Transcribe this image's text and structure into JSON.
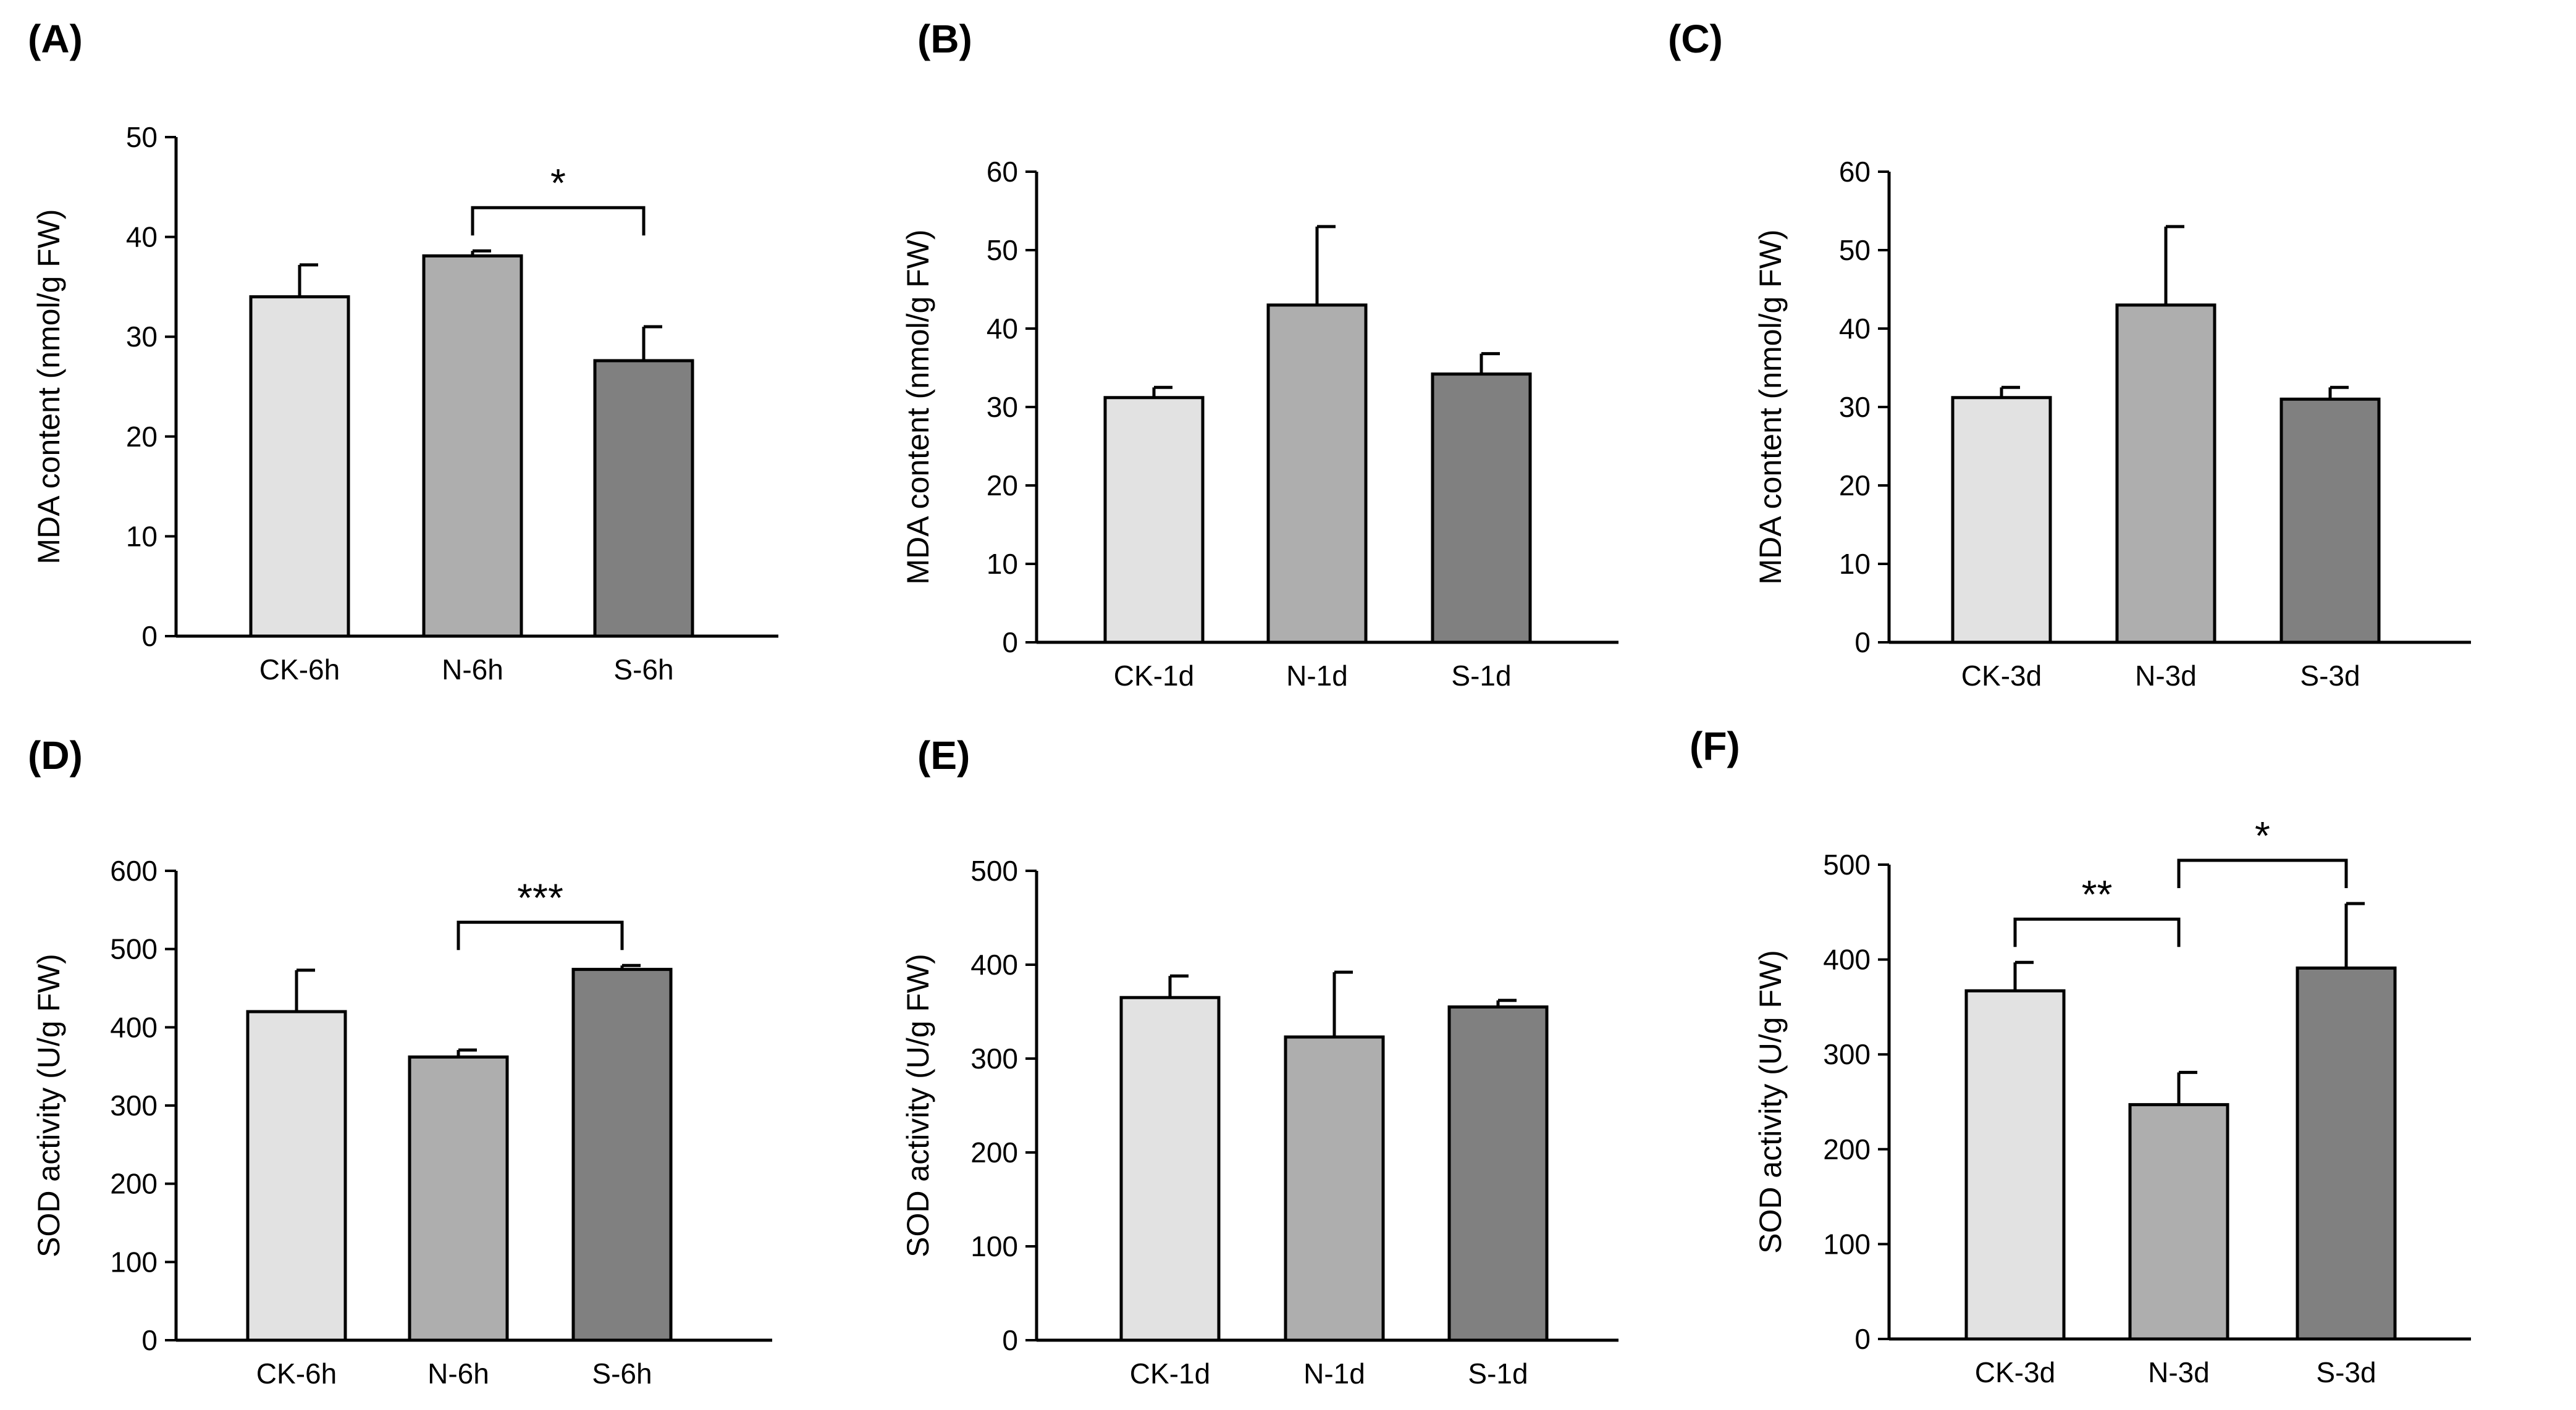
{
  "colors": {
    "bar_light": "#e2e2e2",
    "bar_mid": "#aeaeae",
    "bar_dark": "#808080",
    "stroke": "#000000",
    "background": "#ffffff"
  },
  "chart_data": [
    {
      "panel": "(A)",
      "type": "bar",
      "ylabel": "MDA content (nmol/g FW)",
      "xlabel": "",
      "ylim": [
        0,
        50
      ],
      "yticks": [
        0,
        10,
        20,
        30,
        40,
        50
      ],
      "categories": [
        "CK-6h",
        "N-6h",
        "S-6h"
      ],
      "values": [
        34,
        38.1,
        27.6
      ],
      "errors": [
        3.2,
        0.5,
        3.4
      ],
      "significance": [
        {
          "from": 1,
          "to": 2,
          "label": "*"
        }
      ]
    },
    {
      "panel": "(B)",
      "type": "bar",
      "ylabel": "MDA content (nmol/g FW)",
      "xlabel": "",
      "ylim": [
        0,
        60
      ],
      "yticks": [
        0,
        10,
        20,
        30,
        40,
        50,
        60
      ],
      "categories": [
        "CK-1d",
        "N-1d",
        "S-1d"
      ],
      "values": [
        31.2,
        43,
        34.2
      ],
      "errors": [
        1.3,
        10,
        2.6
      ],
      "significance": []
    },
    {
      "panel": "(C)",
      "type": "bar",
      "ylabel": "MDA content (nmol/g FW)",
      "xlabel": "",
      "ylim": [
        0,
        60
      ],
      "yticks": [
        0,
        10,
        20,
        30,
        40,
        50,
        60
      ],
      "categories": [
        "CK-3d",
        "N-3d",
        "S-3d"
      ],
      "values": [
        31.2,
        43,
        31
      ],
      "errors": [
        1.3,
        10,
        1.5
      ],
      "significance": []
    },
    {
      "panel": "(D)",
      "type": "bar",
      "ylabel": "SOD activity (U/g FW)",
      "xlabel": "",
      "ylim": [
        0,
        600
      ],
      "yticks": [
        0,
        100,
        200,
        300,
        400,
        500,
        600
      ],
      "categories": [
        "CK-6h",
        "N-6h",
        "S-6h"
      ],
      "values": [
        420,
        362,
        474
      ],
      "errors": [
        53,
        9,
        5
      ],
      "significance": [
        {
          "from": 1,
          "to": 2,
          "label": "***"
        }
      ]
    },
    {
      "panel": "(E)",
      "type": "bar",
      "ylabel": "SOD activity (U/g FW)",
      "xlabel": "",
      "ylim": [
        0,
        500
      ],
      "yticks": [
        0,
        100,
        200,
        300,
        400,
        500
      ],
      "categories": [
        "CK-1d",
        "N-1d",
        "S-1d"
      ],
      "values": [
        365,
        323,
        355
      ],
      "errors": [
        23,
        69,
        7
      ],
      "significance": []
    },
    {
      "panel": "(F)",
      "type": "bar",
      "ylabel": "SOD activity (U/g FW)",
      "xlabel": "",
      "ylim": [
        0,
        500
      ],
      "yticks": [
        0,
        100,
        200,
        300,
        400,
        500
      ],
      "categories": [
        "CK-3d",
        "N-3d",
        "S-3d"
      ],
      "values": [
        367,
        247,
        391
      ],
      "errors": [
        30,
        34,
        68
      ],
      "significance": [
        {
          "from": 0,
          "to": 1,
          "label": "**"
        },
        {
          "from": 1,
          "to": 2,
          "label": "*"
        }
      ]
    }
  ]
}
